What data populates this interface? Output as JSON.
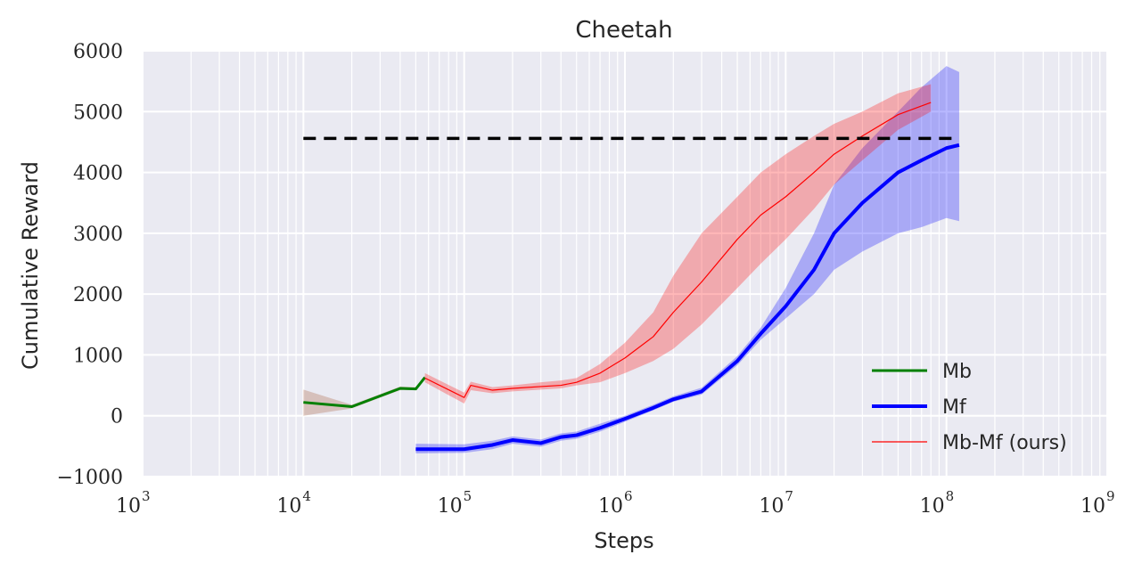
{
  "chart_data": {
    "type": "line",
    "title": "Cheetah",
    "xlabel": "Steps",
    "ylabel": "Cumulative Reward",
    "xscale": "log",
    "xlim": [
      1000,
      1000000000
    ],
    "ylim": [
      -1000,
      6000
    ],
    "xticks": [
      {
        "base": "10",
        "exp": "3"
      },
      {
        "base": "10",
        "exp": "4"
      },
      {
        "base": "10",
        "exp": "5"
      },
      {
        "base": "10",
        "exp": "6"
      },
      {
        "base": "10",
        "exp": "7"
      },
      {
        "base": "10",
        "exp": "8"
      },
      {
        "base": "10",
        "exp": "9"
      }
    ],
    "yticks": [
      "−1000",
      "0",
      "1000",
      "2000",
      "3000",
      "4000",
      "5000",
      "6000"
    ],
    "grid": true,
    "legend_position": "lower-right",
    "reference_line": {
      "y": 4560,
      "x_start": 10000,
      "x_end": 120000000,
      "style": "dashed",
      "color": "#000000"
    },
    "series": [
      {
        "name": "Mb",
        "color": "#008000",
        "band_color": "#a0522d",
        "x": [
          10000,
          20000,
          40000,
          50000,
          57000
        ],
        "y": [
          220,
          150,
          450,
          440,
          630
        ],
        "y_low": [
          0,
          120,
          420,
          420,
          600
        ],
        "y_high": [
          430,
          180,
          480,
          470,
          660
        ]
      },
      {
        "name": "Mf",
        "color": "#0000ff",
        "band_color": "#0000ff",
        "x": [
          50000,
          100000,
          150000,
          200000,
          300000,
          400000,
          500000,
          700000,
          1000000,
          1500000,
          2000000,
          3000000,
          5000000,
          7000000,
          10000000,
          15000000,
          20000000,
          30000000,
          50000000,
          70000000,
          100000000,
          120000000
        ],
        "y": [
          -550,
          -550,
          -480,
          -400,
          -450,
          -350,
          -320,
          -200,
          -50,
          130,
          270,
          400,
          900,
          1350,
          1800,
          2400,
          3000,
          3500,
          4000,
          4200,
          4400,
          4450
        ],
        "y_low": [
          -620,
          -610,
          -550,
          -460,
          -510,
          -410,
          -380,
          -260,
          -100,
          90,
          230,
          350,
          830,
          1250,
          1600,
          2000,
          2400,
          2700,
          3000,
          3100,
          3250,
          3200
        ],
        "y_high": [
          -460,
          -470,
          -410,
          -340,
          -390,
          -290,
          -260,
          -130,
          0,
          180,
          320,
          460,
          980,
          1450,
          2100,
          3000,
          3800,
          4400,
          5000,
          5400,
          5750,
          5650
        ]
      },
      {
        "name": "Mb-Mf (ours)",
        "color": "#ff0000",
        "band_color": "#ff0000",
        "x": [
          57000,
          100000,
          110000,
          150000,
          200000,
          300000,
          400000,
          500000,
          700000,
          1000000,
          1500000,
          2000000,
          3000000,
          5000000,
          7000000,
          10000000,
          15000000,
          20000000,
          30000000,
          50000000,
          80000000
        ],
        "y": [
          620,
          300,
          500,
          420,
          450,
          480,
          500,
          550,
          700,
          950,
          1300,
          1700,
          2200,
          2900,
          3300,
          3600,
          4000,
          4300,
          4600,
          4950,
          5150
        ],
        "y_low": [
          550,
          200,
          420,
          370,
          400,
          430,
          450,
          500,
          550,
          700,
          900,
          1100,
          1500,
          2100,
          2500,
          2900,
          3400,
          3800,
          4200,
          4700,
          5000
        ],
        "y_high": [
          700,
          380,
          560,
          470,
          500,
          550,
          580,
          620,
          850,
          1200,
          1700,
          2300,
          3000,
          3600,
          4000,
          4300,
          4600,
          4800,
          5000,
          5300,
          5450
        ]
      }
    ]
  }
}
